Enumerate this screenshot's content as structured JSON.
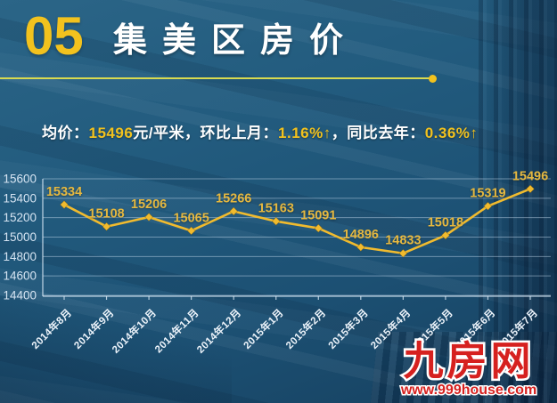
{
  "header": {
    "number": "05",
    "title": "集美区房价"
  },
  "summary": {
    "prefix": "均价：",
    "price": "15496",
    "unit": "元/平米",
    "mom_label": "，环比上月：",
    "mom": "1.16%↑",
    "yoy_label": "，同比去年：",
    "yoy": "0.36%↑"
  },
  "chart_data": {
    "type": "line",
    "categories": [
      "2014年8月",
      "2014年9月",
      "2014年10月",
      "2014年11月",
      "2014年12月",
      "2015年1月",
      "2015年2月",
      "2015年3月",
      "2015年4月",
      "2015年5月",
      "2015年6月",
      "2015年7月"
    ],
    "values": [
      15334,
      15108,
      15206,
      15065,
      15266,
      15163,
      15091,
      14896,
      14833,
      15018,
      15319,
      15496
    ],
    "title": "集美区房价",
    "xlabel": "",
    "ylabel": "",
    "ylim": [
      14400,
      15600
    ],
    "ytick_step": 200,
    "grid": true,
    "legend": false,
    "marker": "diamond"
  },
  "logo": {
    "name": "九房网",
    "url": "www.999house.com"
  },
  "colors": {
    "accent": "#f2c21e",
    "line": "#f1bb2e",
    "dlabel": "#e5b840",
    "divider": "#d8da50",
    "red": "#d6211f"
  }
}
